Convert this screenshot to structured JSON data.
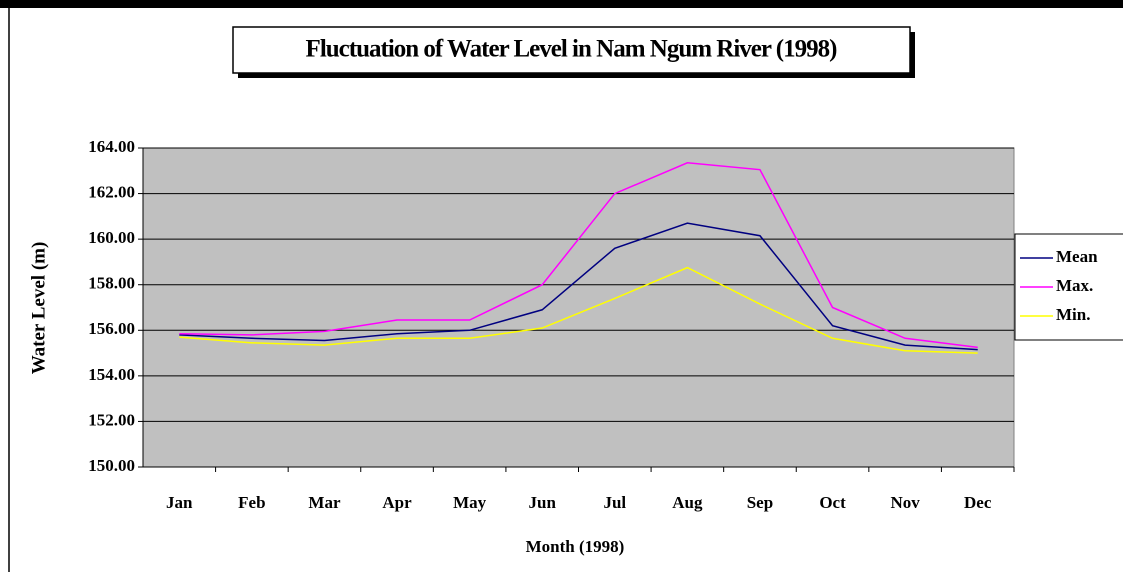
{
  "chart_data": {
    "type": "line",
    "title": "Fluctuation of Water Level in Nam Ngum River (1998)",
    "x_label": "Month (1998)",
    "y_label": "Water Level (m)",
    "categories": [
      "Jan",
      "Feb",
      "Mar",
      "Apr",
      "May",
      "Jun",
      "Jul",
      "Aug",
      "Sep",
      "Oct",
      "Nov",
      "Dec"
    ],
    "series": [
      {
        "name": "Mean",
        "color": "#000080",
        "values": [
          155.8,
          155.65,
          155.55,
          155.85,
          156.0,
          156.9,
          159.6,
          160.7,
          160.15,
          156.2,
          155.35,
          155.15
        ]
      },
      {
        "name": "Max.",
        "color": "#ff00ff",
        "values": [
          155.85,
          155.8,
          155.95,
          156.45,
          156.45,
          158.0,
          162.0,
          163.35,
          163.05,
          157.0,
          155.65,
          155.25
        ]
      },
      {
        "name": "Min.",
        "color": "#ffff00",
        "values": [
          155.7,
          155.45,
          155.35,
          155.65,
          155.65,
          156.1,
          157.4,
          158.75,
          157.15,
          155.65,
          155.1,
          155.0
        ]
      }
    ],
    "ylim": [
      150,
      164
    ],
    "yticks": [
      {
        "value": 150,
        "label": "150.00"
      },
      {
        "value": 152,
        "label": "152.00"
      },
      {
        "value": 154,
        "label": "154.00"
      },
      {
        "value": 156,
        "label": "156.00"
      },
      {
        "value": 158,
        "label": "158.00"
      },
      {
        "value": 160,
        "label": "160.00"
      },
      {
        "value": 162,
        "label": "162.00"
      },
      {
        "value": 164,
        "label": "164.00"
      }
    ],
    "grid": true,
    "legend": "right",
    "plot_background": "#c0c0c0"
  }
}
